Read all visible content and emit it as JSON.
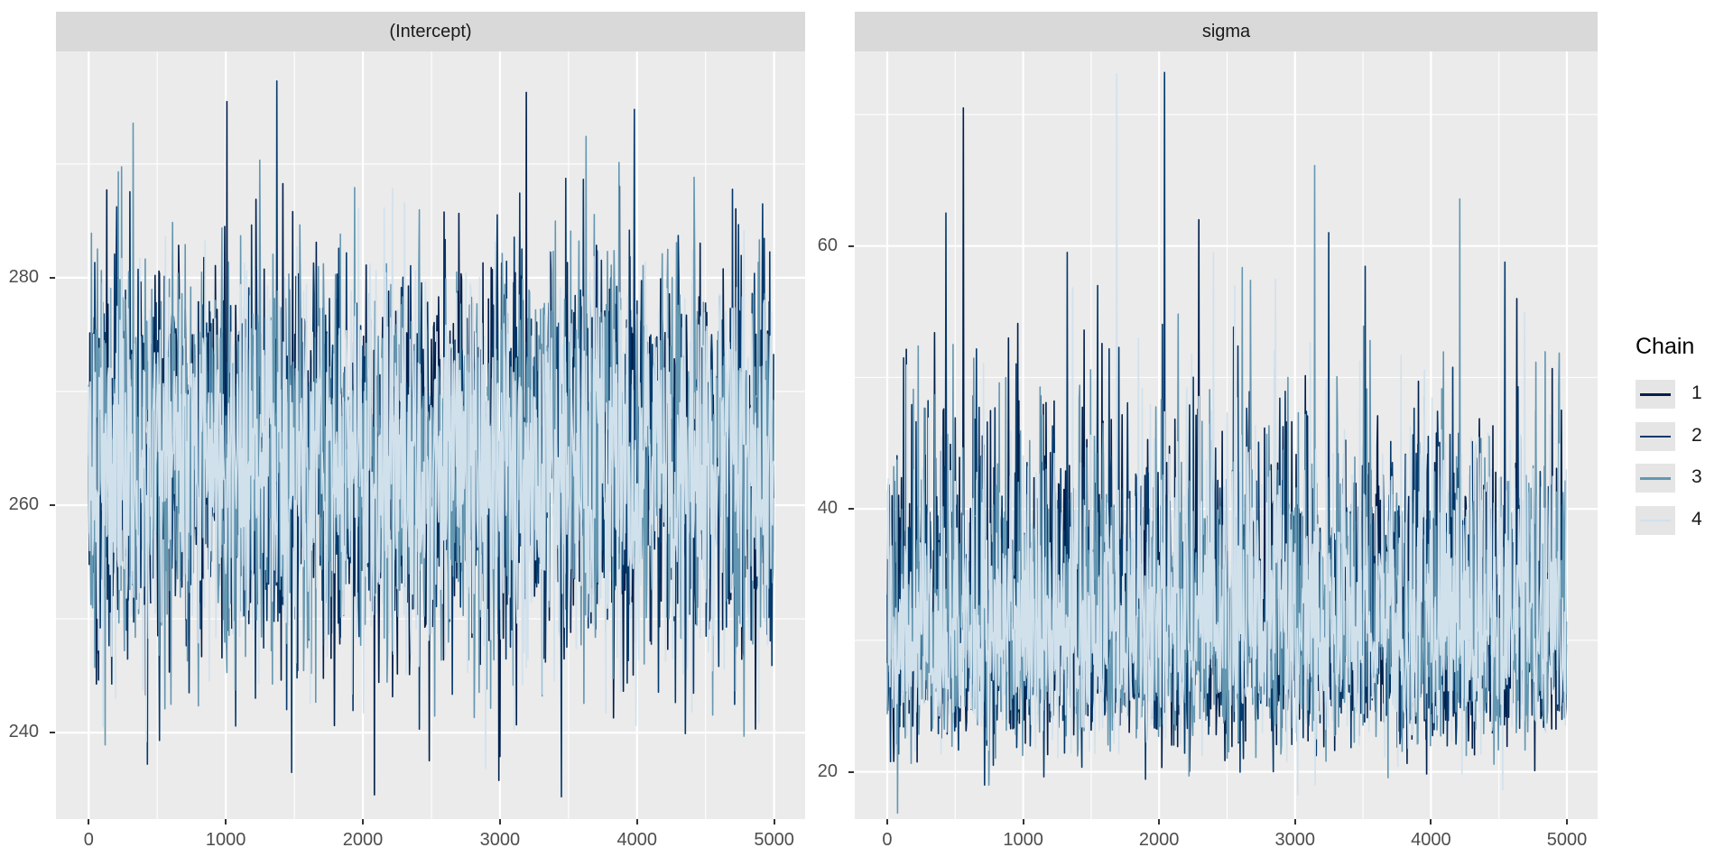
{
  "figure": {
    "kind": "MCMC trace plot, faceted by parameter",
    "background": "#FFFFFF",
    "panel_fill": "#EBEBEB",
    "strip_fill": "#D9D9D9",
    "grid_color": "#FFFFFF",
    "axis_text_color": "#4D4D4D",
    "strip_text_color": "#1A1A1A",
    "tick_mark_color": "#333333"
  },
  "legend": {
    "title": "Chain",
    "key_fill": "#E5E5E5",
    "position": "right",
    "items": [
      {
        "label": "1",
        "color": "#011f4b"
      },
      {
        "label": "2",
        "color": "#03396c"
      },
      {
        "label": "3",
        "color": "#6497b1"
      },
      {
        "label": "4",
        "color": "#d1e1ec"
      }
    ]
  },
  "chart_data": [
    {
      "type": "line",
      "facet": "(Intercept)",
      "xlabel": "",
      "ylabel": "",
      "iterations": 5000,
      "n_chains": 4,
      "points_per_chain": 1250,
      "distribution": "normal",
      "mean": 264,
      "sd": 8.6,
      "observed_range": [
        236,
        297.5
      ],
      "x_ticks": {
        "values": [
          0,
          1000,
          2000,
          3000,
          4000,
          5000
        ],
        "labels": [
          "0",
          "1000",
          "2000",
          "3000",
          "4000",
          "5000"
        ]
      },
      "x_minor": [
        500,
        1500,
        2500,
        3500,
        4500
      ],
      "y_ticks": {
        "values": [
          240,
          260,
          280
        ],
        "labels": [
          "240",
          "260",
          "280"
        ]
      },
      "y_minor": [
        250,
        270,
        290
      ],
      "xlim": [
        -239,
        5226
      ],
      "ylim": [
        232.4,
        299.9
      ],
      "grid": true,
      "series": [
        {
          "name": "chain-1",
          "legend": "1",
          "color": "#011f4b",
          "seed": 101
        },
        {
          "name": "chain-2",
          "legend": "2",
          "color": "#03396c",
          "seed": 202
        },
        {
          "name": "chain-3",
          "legend": "3",
          "color": "#6497b1",
          "seed": 303
        },
        {
          "name": "chain-4",
          "legend": "4",
          "color": "#d1e1ec",
          "seed": 404
        }
      ],
      "spikes": [
        {
          "series": 0,
          "iter": 1007,
          "value": 295.5
        },
        {
          "series": 1,
          "iter": 1371,
          "value": 297.3
        },
        {
          "series": 0,
          "iter": 3192,
          "value": 296.3
        },
        {
          "series": 1,
          "iter": 3980,
          "value": 294.8
        },
        {
          "series": 0,
          "iter": 2993,
          "value": 235.8
        },
        {
          "series": 1,
          "iter": 1480,
          "value": 236.5
        }
      ]
    },
    {
      "type": "line",
      "facet": "sigma",
      "xlabel": "",
      "ylabel": "",
      "iterations": 5000,
      "n_chains": 4,
      "points_per_chain": 1250,
      "distribution": "lognormal",
      "log_mean": 3.43,
      "log_sd_upper": 0.21,
      "log_sd_lower": 0.16,
      "clamp": [
        16.6,
        74.0
      ],
      "observed_range": [
        17.5,
        73.2
      ],
      "x_ticks": {
        "values": [
          0,
          1000,
          2000,
          3000,
          4000,
          5000
        ],
        "labels": [
          "0",
          "1000",
          "2000",
          "3000",
          "4000",
          "5000"
        ]
      },
      "x_minor": [
        500,
        1500,
        2500,
        3500,
        4500
      ],
      "y_ticks": {
        "values": [
          20,
          40,
          60
        ],
        "labels": [
          "20",
          "40",
          "60"
        ]
      },
      "y_minor": [
        30,
        50,
        70
      ],
      "xlim": [
        -239,
        5226
      ],
      "ylim": [
        16.4,
        74.8
      ],
      "grid": true,
      "series": [
        {
          "name": "chain-1",
          "legend": "1",
          "color": "#011f4b",
          "seed": 515
        },
        {
          "name": "chain-2",
          "legend": "2",
          "color": "#03396c",
          "seed": 626
        },
        {
          "name": "chain-3",
          "legend": "3",
          "color": "#6497b1",
          "seed": 737
        },
        {
          "name": "chain-4",
          "legend": "4",
          "color": "#d1e1ec",
          "seed": 848
        }
      ],
      "spikes": [
        {
          "series": 1,
          "iter": 2040,
          "value": 73.2
        },
        {
          "series": 0,
          "iter": 2290,
          "value": 62.0
        },
        {
          "series": 0,
          "iter": 560,
          "value": 70.5
        },
        {
          "series": 1,
          "iter": 430,
          "value": 62.5
        },
        {
          "series": 0,
          "iter": 4630,
          "value": 56.0
        }
      ]
    }
  ]
}
